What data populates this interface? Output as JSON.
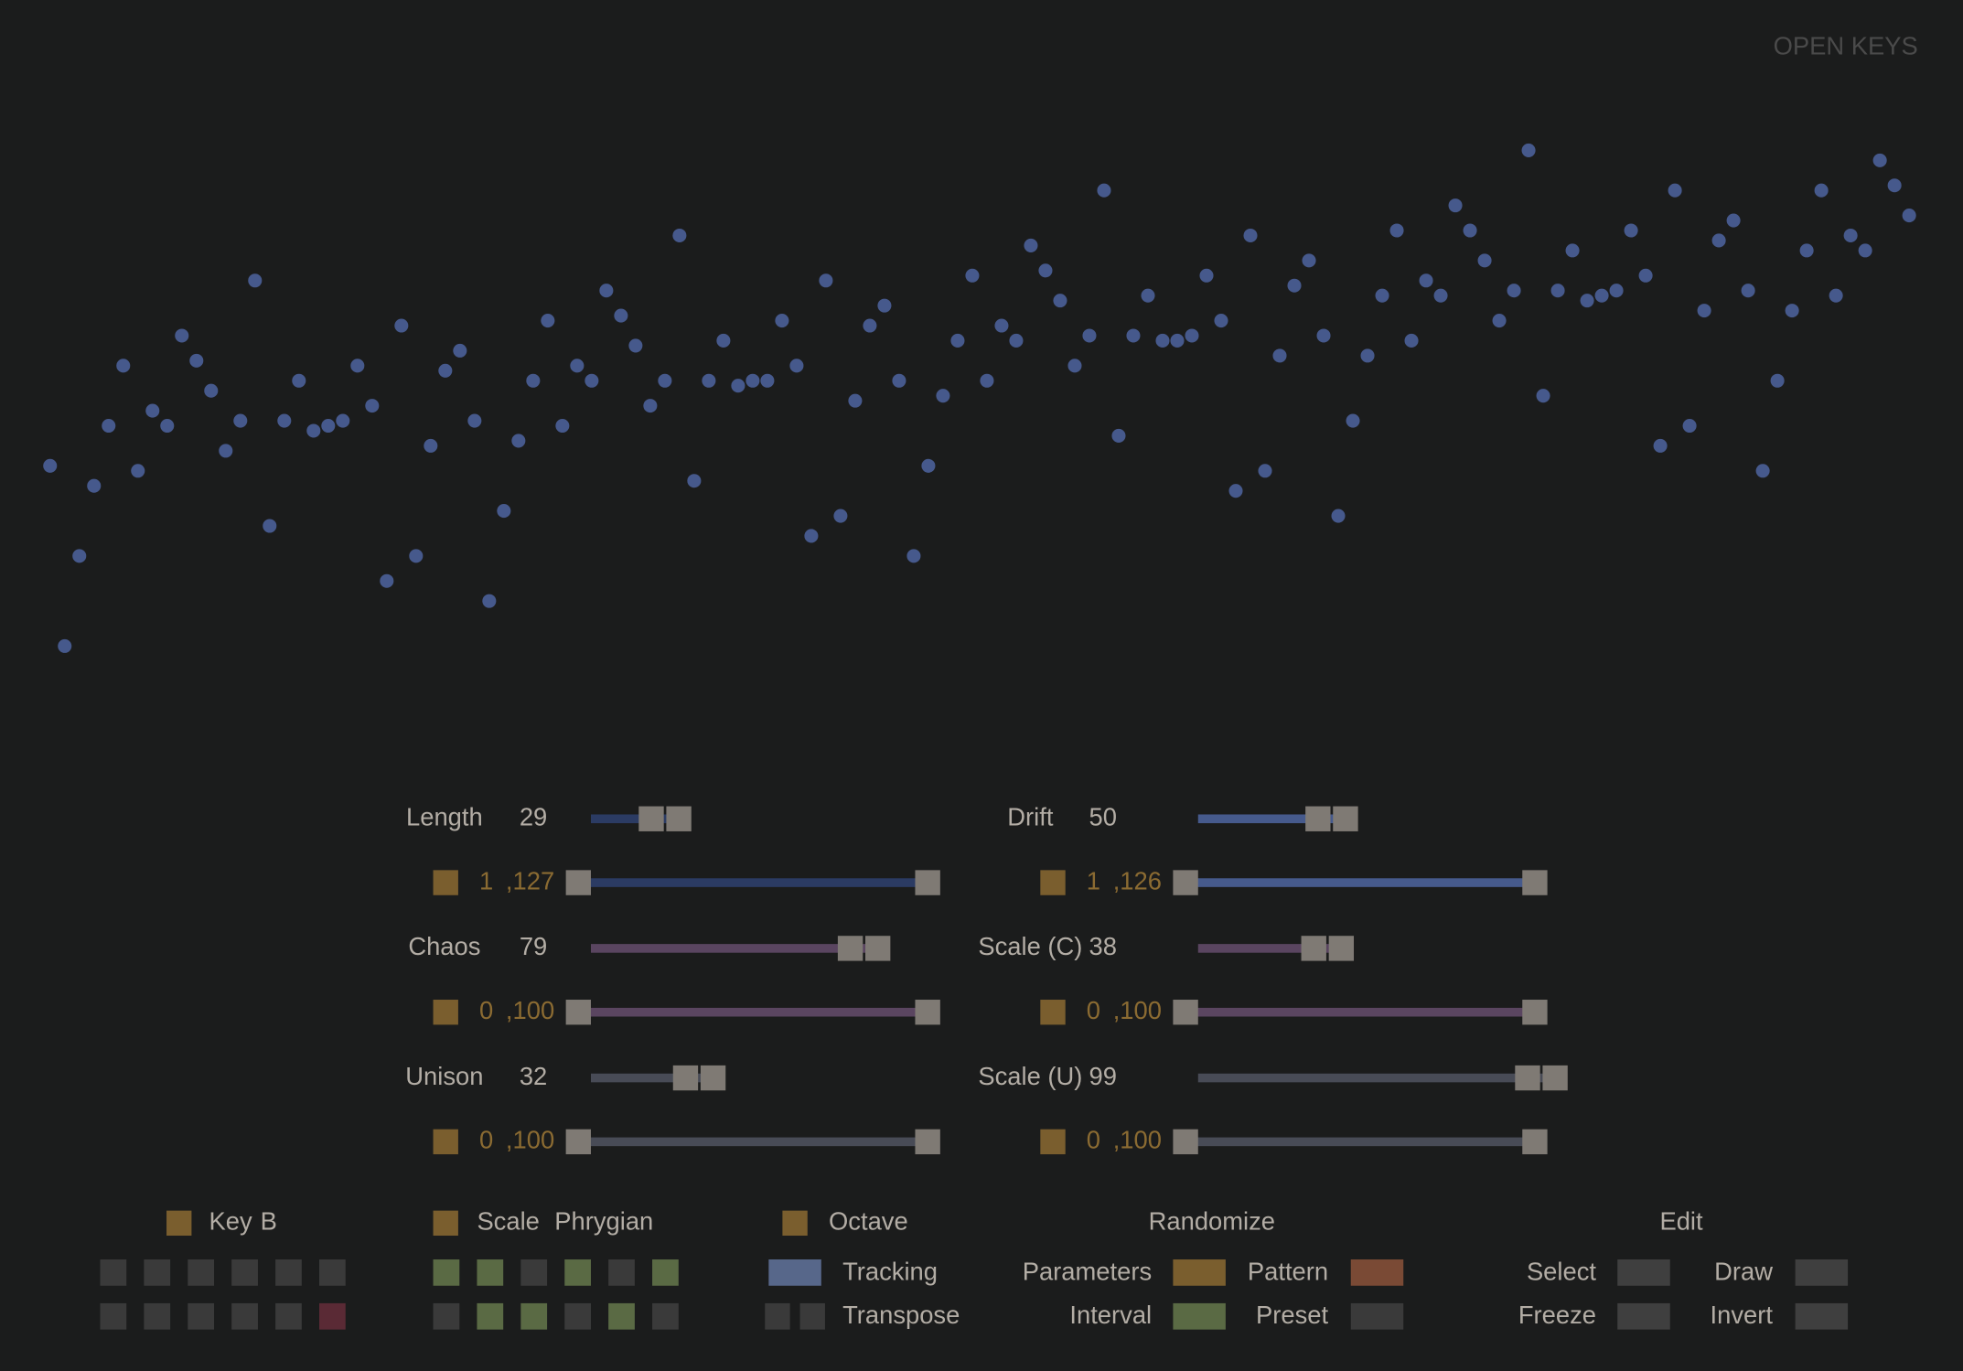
{
  "header": {
    "brand": "OPEN KEYS"
  },
  "pattern": {
    "color": "#46598c",
    "values": [
      47,
      11,
      29,
      43,
      55,
      67,
      46,
      58,
      55,
      73,
      68,
      62,
      50,
      56,
      84,
      35,
      56,
      64,
      54,
      55,
      56,
      67,
      59,
      24,
      75,
      29,
      51,
      66,
      70,
      56,
      20,
      38,
      52,
      64,
      76,
      55,
      67,
      64,
      82,
      77,
      71,
      59,
      64,
      93,
      44,
      64,
      72,
      63,
      64,
      64,
      76,
      67,
      33,
      84,
      37,
      60,
      75,
      79,
      64,
      29,
      47,
      61,
      72,
      85,
      64,
      75,
      72,
      91,
      86,
      80,
      67,
      73,
      102,
      53,
      73,
      81,
      72,
      72,
      73,
      85,
      76,
      42,
      93,
      46,
      69,
      83,
      88,
      73,
      37,
      56,
      69,
      81,
      94,
      72,
      84,
      81,
      99,
      94,
      88,
      76,
      82,
      110,
      61,
      82,
      90,
      80,
      81,
      82,
      94,
      85,
      51,
      102,
      55,
      78,
      92,
      96,
      82,
      46,
      64,
      78,
      90,
      102,
      81,
      93,
      90,
      108,
      103,
      97
    ]
  },
  "sliders": [
    {
      "label": "Length",
      "value": 29,
      "min": 1,
      "max": {
        "value": 127,
        "label": ",127"
      },
      "color": "#2b3b63"
    },
    {
      "label": "Drift",
      "value": 50,
      "min": 1,
      "max": {
        "value": 126,
        "label": ",126"
      },
      "color": "#465a8c"
    },
    {
      "label": "Chaos",
      "value": 79,
      "min": 0,
      "max": {
        "value": 100,
        "label": ",100"
      },
      "color": "#5a4560"
    },
    {
      "label": "Scale (C)",
      "value": 38,
      "min": 0,
      "max": {
        "value": 100,
        "label": ",100"
      },
      "color": "#5a4560"
    },
    {
      "label": "Unison",
      "value": 32,
      "min": 0,
      "max": {
        "value": 100,
        "label": ",100"
      },
      "color": "#484b56"
    },
    {
      "label": "Scale (U)",
      "value": 99,
      "min": 0,
      "max": {
        "value": 100,
        "label": ",100"
      },
      "color": "#484b56"
    }
  ],
  "key": {
    "label": "Key",
    "value": "B",
    "cells": [
      "#3a3a3a",
      "#3a3a3a",
      "#3a3a3a",
      "#3a3a3a",
      "#3a3a3a",
      "#3a3a3a",
      "#3a3a3a",
      "#3a3a3a",
      "#3a3a3a",
      "#3a3a3a",
      "#3a3a3a",
      "#5a2a35"
    ]
  },
  "scale": {
    "label": "Scale",
    "value": "Phrygian",
    "cells": [
      "#5a6a44",
      "#5a6a44",
      "#3a3a3a",
      "#5a6a44",
      "#3a3a3a",
      "#5a6a44",
      "#3a3a3a",
      "#5a6a44",
      "#5a6a44",
      "#3a3a3a",
      "#5a6a44",
      "#3a3a3a"
    ]
  },
  "octave": {
    "label": "Octave",
    "tracking": "Tracking",
    "transpose": "Transpose",
    "tracking_color": "#57678a"
  },
  "randomize": {
    "title": "Randomize",
    "buttons": [
      {
        "label": "Parameters",
        "color": "#7a5e2e"
      },
      {
        "label": "Pattern",
        "color": "#7a4a35"
      },
      {
        "label": "Interval",
        "color": "#5a6a44"
      },
      {
        "label": "Preset",
        "color": "#3a3a3a"
      }
    ]
  },
  "edit": {
    "title": "Edit",
    "buttons": [
      {
        "label": "Select",
        "color": "#3f3f3f"
      },
      {
        "label": "Draw",
        "color": "#3f3f3f"
      },
      {
        "label": "Freeze",
        "color": "#3f3f3f"
      },
      {
        "label": "Invert",
        "color": "#3f3f3f"
      }
    ]
  }
}
